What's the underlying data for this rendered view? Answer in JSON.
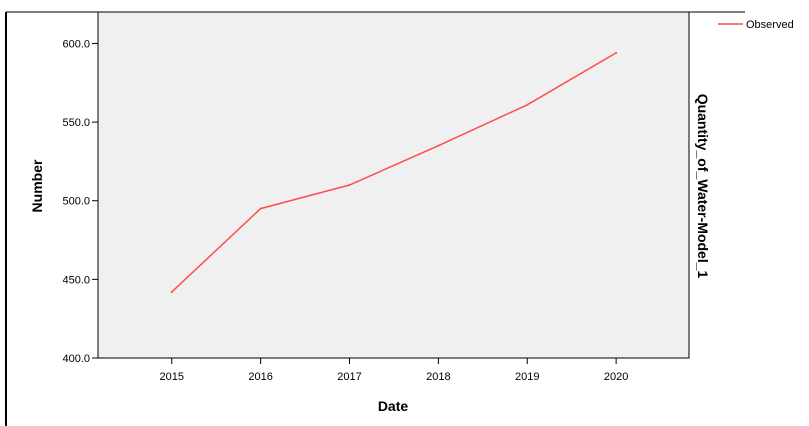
{
  "chart_data": {
    "type": "line",
    "x": [
      "2015",
      "2016",
      "2017",
      "2018",
      "2019",
      "2020"
    ],
    "series": [
      {
        "name": "Observed",
        "values": [
          442,
          495,
          510,
          535,
          561,
          594
        ],
        "color": "#ff4d4d"
      }
    ],
    "xlabel": "Date",
    "ylabel": "Number",
    "right_label": "Quantity_of_Water-Model_1",
    "ylim": [
      400,
      620
    ],
    "yticks": [
      400,
      450,
      500,
      550,
      600
    ],
    "ytick_labels": [
      "400.0",
      "450.0",
      "500.0",
      "550.0",
      "600.0"
    ],
    "grid": false,
    "legend_position": "top-right",
    "plot_background": "#f0f0f0"
  }
}
